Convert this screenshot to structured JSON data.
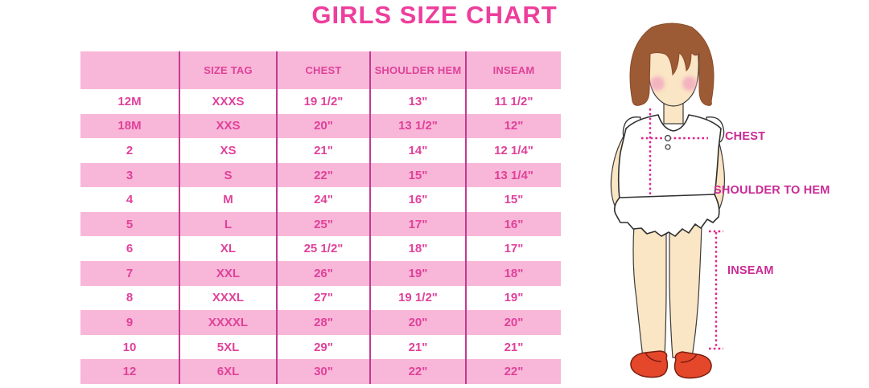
{
  "title": "GIRLS SIZE CHART",
  "chart_data": {
    "type": "table",
    "title": "GIRLS SIZE CHART",
    "columns": [
      "",
      "SIZE TAG",
      "CHEST",
      "SHOULDER HEM",
      "INSEAM"
    ],
    "rows": [
      [
        "12M",
        "XXXS",
        "19 1/2\"",
        "13\"",
        "11 1/2\""
      ],
      [
        "18M",
        "XXS",
        "20\"",
        "13 1/2\"",
        "12\""
      ],
      [
        "2",
        "XS",
        "21\"",
        "14\"",
        "12 1/4\""
      ],
      [
        "3",
        "S",
        "22\"",
        "15\"",
        "13 1/4\""
      ],
      [
        "4",
        "M",
        "24\"",
        "16\"",
        "15\""
      ],
      [
        "5",
        "L",
        "25\"",
        "17\"",
        "16\""
      ],
      [
        "6",
        "XL",
        "25 1/2\"",
        "18\"",
        "17\""
      ],
      [
        "7",
        "XXL",
        "26\"",
        "19\"",
        "18\""
      ],
      [
        "8",
        "XXXL",
        "27\"",
        "19 1/2\"",
        "19\""
      ],
      [
        "9",
        "XXXXL",
        "28\"",
        "20\"",
        "20\""
      ],
      [
        "10",
        "5XL",
        "29\"",
        "21\"",
        "21\""
      ],
      [
        "12",
        "6XL",
        "30\"",
        "22\"",
        "22\""
      ]
    ]
  },
  "figure": {
    "labels": {
      "chest": "CHEST",
      "shoulder_to_hem": "SHOULDER TO HEM",
      "inseam": "INSEAM"
    }
  },
  "colors": {
    "title_pink": "#ED3E9C",
    "row_pink": "#F8B7D8",
    "row_white": "#FFFFFF",
    "divider_magenta": "#C23A90",
    "cell_text_pink": "#E0419A",
    "label_magenta": "#CA2B95",
    "dotted_line_pink": "#E0218A",
    "hair_brown": "#9C5A35",
    "skin_tone": "#FAE5C4",
    "blush_pink": "#F2A9BF",
    "shoe_red": "#E5472B"
  }
}
